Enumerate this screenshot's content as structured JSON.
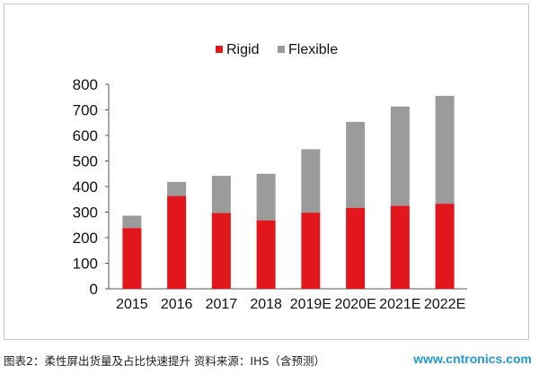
{
  "chart_data": {
    "type": "bar",
    "stacked": true,
    "categories": [
      "2015",
      "2016",
      "2017",
      "2018",
      "2019E",
      "2020E",
      "2021E",
      "2022E"
    ],
    "series": [
      {
        "name": "Rigid",
        "color": "#e2161d",
        "values": [
          238,
          363,
          297,
          268,
          298,
          317,
          325,
          333
        ]
      },
      {
        "name": "Flexible",
        "color": "#9b9b9b",
        "values": [
          48,
          55,
          145,
          182,
          248,
          336,
          388,
          422
        ]
      }
    ],
    "ylim": [
      0,
      800
    ],
    "yticks": [
      0,
      100,
      200,
      300,
      400,
      500,
      600,
      700,
      800
    ],
    "grid": false,
    "legend_position": "top"
  },
  "caption": "图表2：柔性屏出货量及占比快速提升  资料来源：IHS（含预测）",
  "watermark": "www.cntronics.com"
}
